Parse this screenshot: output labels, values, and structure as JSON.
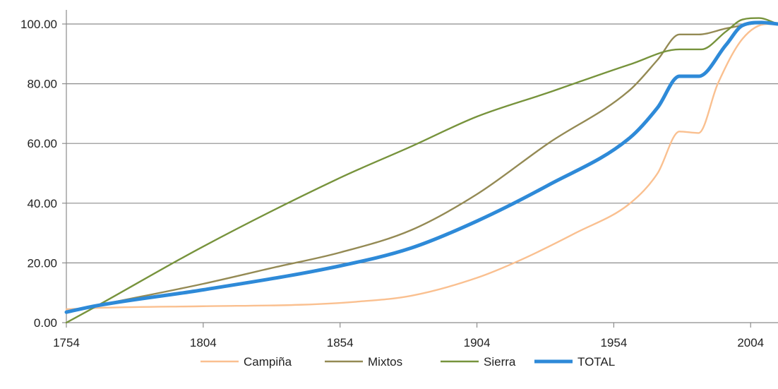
{
  "chart_data": {
    "type": "line",
    "title": "",
    "xlabel": "",
    "ylabel": "",
    "xlim": [
      1754,
      2014
    ],
    "ylim": [
      0,
      100
    ],
    "x_ticks": [
      1754,
      1804,
      1854,
      1904,
      1954,
      2004
    ],
    "y_ticks": [
      0,
      20,
      40,
      60,
      80,
      100
    ],
    "x_tick_labels": [
      "1754",
      "1804",
      "1854",
      "1904",
      "1954",
      "2004"
    ],
    "y_tick_labels": [
      "0.00",
      "20.00",
      "40.00",
      "60.00",
      "80.00",
      "100.00"
    ],
    "grid": "horizontal",
    "legend_position": "bottom",
    "series": [
      {
        "name": "Campiña",
        "color": "#fac090",
        "x": [
          1754,
          1768,
          1804,
          1840,
          1860,
          1880,
          1904,
          1920,
          1940,
          1960,
          1970,
          1978,
          1985,
          1992,
          2001,
          2010,
          2014
        ],
        "y": [
          4.5,
          5,
          5.5,
          6,
          7,
          9,
          15,
          21,
          30,
          40,
          50,
          64,
          63.5,
          80,
          95,
          100,
          100
        ]
      },
      {
        "name": "Mixtos",
        "color": "#948a54",
        "x": [
          1754,
          1764,
          1804,
          1830,
          1854,
          1880,
          1904,
          1930,
          1960,
          1970,
          1978,
          1985,
          1995,
          2004,
          2010,
          2014
        ],
        "y": [
          3.5,
          5.5,
          13,
          18.5,
          23.5,
          31,
          43,
          60,
          78,
          88,
          96.5,
          96.5,
          98.5,
          100,
          100.5,
          100
        ]
      },
      {
        "name": "Sierra",
        "color": "#77933c",
        "x": [
          1754,
          1764,
          1804,
          1854,
          1880,
          1904,
          1930,
          1960,
          1978,
          1986,
          1995,
          2001,
          2007,
          2014
        ],
        "y": [
          0,
          5,
          25.5,
          48.5,
          59,
          69,
          77,
          86.5,
          91.5,
          91.5,
          97.5,
          101.5,
          102,
          100
        ]
      },
      {
        "name": "TOTAL",
        "color": "#2e8ad8",
        "x": [
          1754,
          1764,
          1804,
          1854,
          1880,
          1904,
          1930,
          1960,
          1970,
          1978,
          1985,
          1995,
          2001,
          2008,
          2014
        ],
        "y": [
          3.5,
          5.5,
          11,
          19,
          25,
          34,
          46,
          62,
          72,
          82.5,
          82.5,
          93,
          99.5,
          100.5,
          100
        ]
      }
    ]
  }
}
